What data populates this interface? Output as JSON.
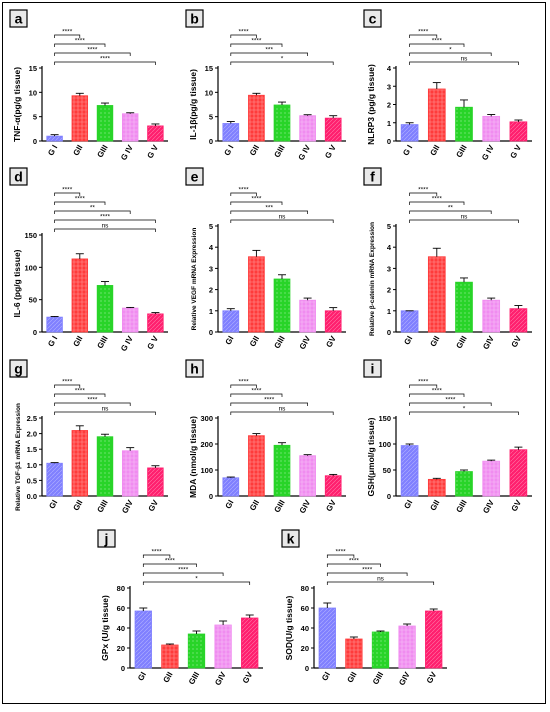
{
  "palette": {
    "G1": "#8080ff",
    "G2": "#ff3b3b",
    "G3": "#28d428",
    "G4": "#f08cf0",
    "G5": "#ff1f6e",
    "badge_fill": "#e9e9e9"
  },
  "chart_data": [
    {
      "type": "bar",
      "panel": "a",
      "ylabel": "TNF-α(pg/g tissue)",
      "categories": [
        "G I",
        "GII",
        "GIII",
        "G IV",
        "G V"
      ],
      "values": [
        1.0,
        9.3,
        7.3,
        5.6,
        3.1
      ],
      "errors": [
        0.3,
        0.5,
        0.5,
        0.2,
        0.4
      ],
      "ylim": [
        0,
        15
      ],
      "yticks": [
        0,
        5,
        10,
        15
      ],
      "comparisons": [
        {
          "to": "GII",
          "label": "****"
        },
        {
          "to": "GIII",
          "label": "****"
        },
        {
          "to": "G IV",
          "label": "****"
        },
        {
          "to": "G V",
          "label": "****"
        }
      ]
    },
    {
      "type": "bar",
      "panel": "b",
      "ylabel": "IL-1β(pg/g tissue)",
      "categories": [
        "G I",
        "GII",
        "GIII",
        "G IV",
        "G V"
      ],
      "values": [
        3.6,
        9.4,
        7.4,
        5.2,
        4.7
      ],
      "errors": [
        0.4,
        0.4,
        0.6,
        0.2,
        0.5
      ],
      "ylim": [
        0,
        15
      ],
      "yticks": [
        0,
        5,
        10,
        15
      ],
      "comparisons": [
        {
          "to": "GII",
          "label": "****"
        },
        {
          "to": "GIII",
          "label": "****"
        },
        {
          "to": "G IV",
          "label": "***"
        },
        {
          "to": "G V",
          "label": "*"
        }
      ]
    },
    {
      "type": "bar",
      "panel": "c",
      "ylabel": "NLRP3 (pg/g tissue)",
      "categories": [
        "G I",
        "GII",
        "GIII",
        "G IV",
        "G V"
      ],
      "values": [
        0.9,
        2.85,
        1.85,
        1.35,
        1.05
      ],
      "errors": [
        0.1,
        0.35,
        0.4,
        0.1,
        0.1
      ],
      "ylim": [
        0,
        4
      ],
      "yticks": [
        0,
        1,
        2,
        3,
        4
      ],
      "comparisons": [
        {
          "to": "GII",
          "label": "****"
        },
        {
          "to": "GIII",
          "label": "****"
        },
        {
          "to": "G IV",
          "label": "*"
        },
        {
          "to": "G V",
          "label": "ns"
        }
      ]
    },
    {
      "type": "bar",
      "panel": "d",
      "ylabel": "IL-6 (pg/g tissue)",
      "categories": [
        "G I",
        "GII",
        "GIII",
        "G IV",
        "G V"
      ],
      "values": [
        23,
        113,
        72,
        37,
        28
      ],
      "errors": [
        1,
        8,
        6,
        1,
        2
      ],
      "ylim": [
        0,
        150
      ],
      "yticks": [
        0,
        50,
        100,
        150
      ],
      "comparisons": [
        {
          "to": "GII",
          "label": "****"
        },
        {
          "to": "GIII",
          "label": "****"
        },
        {
          "to": "G IV",
          "label": "**"
        },
        {
          "to": "G V",
          "label": "****"
        },
        {
          "to": "G V",
          "label": "ns"
        }
      ]
    },
    {
      "type": "bar",
      "panel": "e",
      "ylabel": "Relative VEGF mRNA Expression",
      "categories": [
        "GI",
        "GII",
        "GIII",
        "GIV",
        "GV"
      ],
      "values": [
        1.0,
        3.55,
        2.5,
        1.5,
        1.0
      ],
      "errors": [
        0.1,
        0.3,
        0.2,
        0.1,
        0.15
      ],
      "ylim": [
        0,
        5
      ],
      "yticks": [
        0,
        1,
        2,
        3,
        4,
        5
      ],
      "comparisons": [
        {
          "to": "GII",
          "label": "****"
        },
        {
          "to": "GIII",
          "label": "****"
        },
        {
          "to": "GIV",
          "label": "***"
        },
        {
          "to": "GV",
          "label": "ns"
        }
      ]
    },
    {
      "type": "bar",
      "panel": "f",
      "ylabel": "Relative β-catenin mRNA Expression",
      "categories": [
        "GI",
        "GII",
        "GIII",
        "GIV",
        "GV"
      ],
      "values": [
        1.0,
        3.55,
        2.35,
        1.5,
        1.1
      ],
      "errors": [
        0.0,
        0.4,
        0.2,
        0.1,
        0.15
      ],
      "ylim": [
        0,
        5
      ],
      "yticks": [
        0,
        1,
        2,
        3,
        4,
        5
      ],
      "comparisons": [
        {
          "to": "GII",
          "label": "****"
        },
        {
          "to": "GIII",
          "label": "****"
        },
        {
          "to": "GIV",
          "label": "**"
        },
        {
          "to": "GV",
          "label": "ns"
        }
      ]
    },
    {
      "type": "bar",
      "panel": "g",
      "ylabel": "Relative TGF-β1 mRNA Expression",
      "categories": [
        "GI",
        "GII",
        "GIII",
        "GIV",
        "GV"
      ],
      "values": [
        1.05,
        2.1,
        1.9,
        1.45,
        0.9
      ],
      "errors": [
        0.02,
        0.15,
        0.08,
        0.1,
        0.07
      ],
      "ylim": [
        0,
        2.5
      ],
      "yticks": [
        0.0,
        0.5,
        1.0,
        1.5,
        2.0,
        2.5
      ],
      "comparisons": [
        {
          "to": "GII",
          "label": "****"
        },
        {
          "to": "GIII",
          "label": "****"
        },
        {
          "to": "GIV",
          "label": "****"
        },
        {
          "to": "GV",
          "label": "ns"
        }
      ]
    },
    {
      "type": "bar",
      "panel": "h",
      "ylabel": "MDA (nmol/g tissue)",
      "categories": [
        "GI",
        "GII",
        "GIII",
        "GIV",
        "GV"
      ],
      "values": [
        70,
        232,
        195,
        155,
        78
      ],
      "errors": [
        3,
        8,
        10,
        4,
        5
      ],
      "ylim": [
        0,
        300
      ],
      "yticks": [
        0,
        100,
        200,
        300
      ],
      "comparisons": [
        {
          "to": "GII",
          "label": "****"
        },
        {
          "to": "GIII",
          "label": "****"
        },
        {
          "to": "GIV",
          "label": "****"
        },
        {
          "to": "GV",
          "label": "ns"
        }
      ]
    },
    {
      "type": "bar",
      "panel": "i",
      "ylabel": "GSH(μmol/g tissue)",
      "categories": [
        "GI",
        "GII",
        "GIII",
        "GIV",
        "GV"
      ],
      "values": [
        97,
        32,
        47,
        67,
        89
      ],
      "errors": [
        3,
        2,
        3,
        2,
        5
      ],
      "ylim": [
        0,
        150
      ],
      "yticks": [
        0,
        50,
        100,
        150
      ],
      "comparisons": [
        {
          "to": "GII",
          "label": "****"
        },
        {
          "to": "GIII",
          "label": "****"
        },
        {
          "to": "GIV",
          "label": "****"
        },
        {
          "to": "GV",
          "label": "*"
        }
      ]
    },
    {
      "type": "bar",
      "panel": "j",
      "ylabel": "GPx (U/g tissue)",
      "categories": [
        "GI",
        "GII",
        "GIII",
        "GIV",
        "GV"
      ],
      "values": [
        57,
        23,
        34,
        43,
        50
      ],
      "errors": [
        3,
        1,
        3,
        4,
        3
      ],
      "ylim": [
        0,
        80
      ],
      "yticks": [
        0,
        20,
        40,
        60,
        80
      ],
      "comparisons": [
        {
          "to": "GII",
          "label": "****"
        },
        {
          "to": "GIII",
          "label": "****"
        },
        {
          "to": "GIV",
          "label": "****"
        },
        {
          "to": "GV",
          "label": "*"
        }
      ]
    },
    {
      "type": "bar",
      "panel": "k",
      "ylabel": "SOD(U/g tissue)",
      "categories": [
        "GI",
        "GII",
        "GIII",
        "GIV",
        "GV"
      ],
      "values": [
        60,
        29,
        36,
        42,
        57
      ],
      "errors": [
        5,
        2,
        1,
        2,
        2
      ],
      "ylim": [
        0,
        80
      ],
      "yticks": [
        0,
        20,
        40,
        60,
        80
      ],
      "comparisons": [
        {
          "to": "GII",
          "label": "****"
        },
        {
          "to": "GIII",
          "label": "****"
        },
        {
          "to": "GIV",
          "label": "****"
        },
        {
          "to": "GV",
          "label": "ns"
        }
      ]
    }
  ]
}
